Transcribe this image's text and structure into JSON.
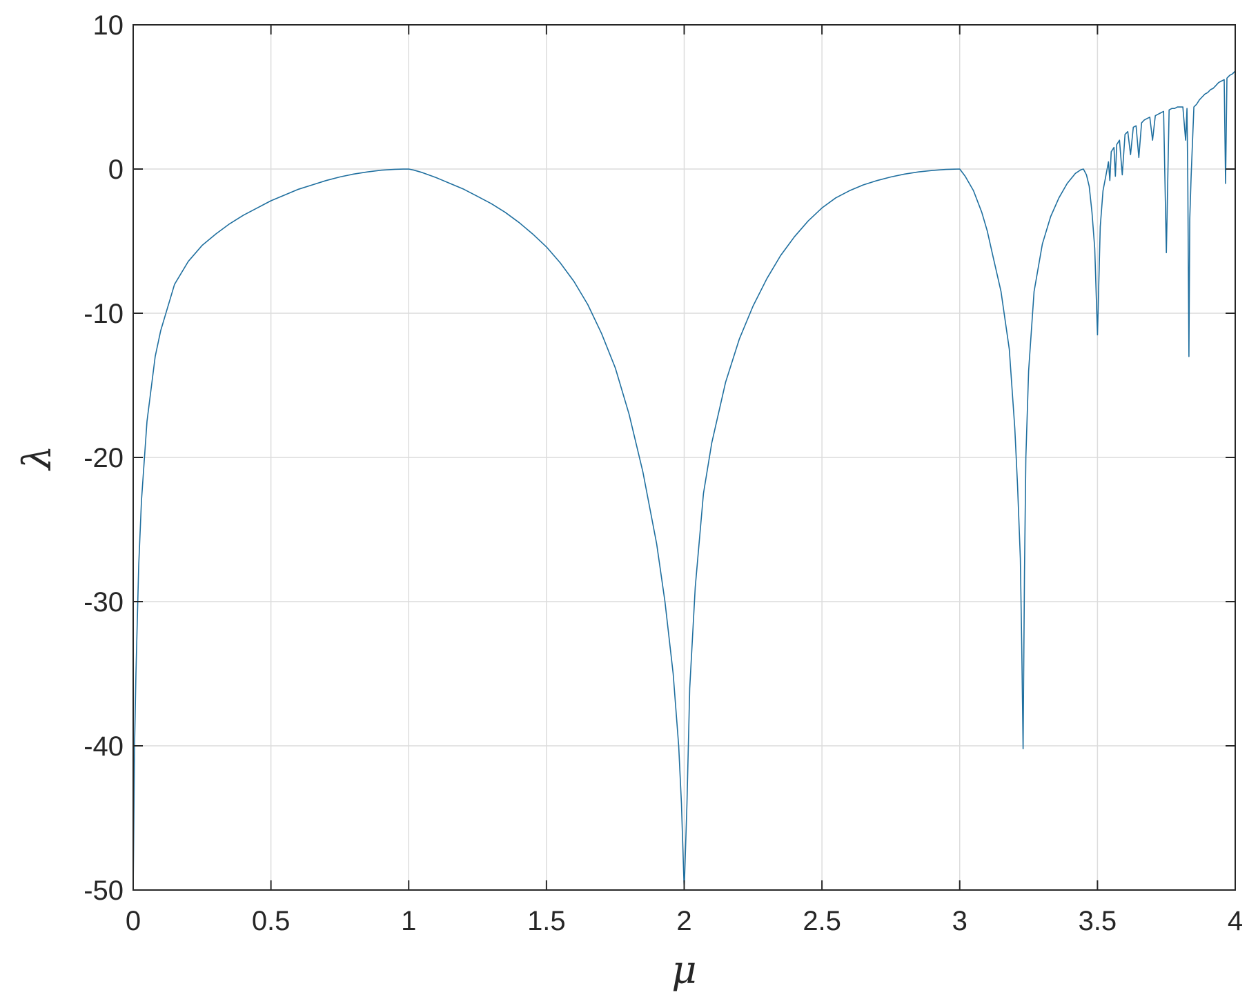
{
  "chart_data": {
    "type": "line",
    "title": "",
    "xlabel": "μ",
    "ylabel": "λ",
    "xlim": [
      0,
      4
    ],
    "ylim": [
      -50,
      10
    ],
    "grid": true,
    "x_ticks": [
      0,
      0.5,
      1,
      1.5,
      2,
      2.5,
      3,
      3.5,
      4
    ],
    "x_tick_labels": [
      "0",
      "0.5",
      "1",
      "1.5",
      "2",
      "2.5",
      "3",
      "3.5",
      "4"
    ],
    "y_ticks": [
      10,
      0,
      -10,
      -20,
      -30,
      -40,
      -50
    ],
    "y_tick_labels": [
      "10",
      "0",
      "-10",
      "-20",
      "-30",
      "-40",
      "-50"
    ],
    "colors": {
      "series": "#1f6f9f",
      "grid": "#dcdcdc",
      "axis": "#262626"
    },
    "series": [
      {
        "x": [
          0.0,
          0.005,
          0.01,
          0.02,
          0.03,
          0.05,
          0.08,
          0.1,
          0.15,
          0.2,
          0.25,
          0.3,
          0.35,
          0.4,
          0.45,
          0.5,
          0.55,
          0.6,
          0.65,
          0.7,
          0.75,
          0.8,
          0.85,
          0.9,
          0.95,
          0.98,
          1.0,
          1.02,
          1.05,
          1.1,
          1.15,
          1.2,
          1.25,
          1.3,
          1.35,
          1.4,
          1.45,
          1.5,
          1.55,
          1.6,
          1.65,
          1.7,
          1.75,
          1.8,
          1.85,
          1.9,
          1.93,
          1.96,
          1.98,
          1.99,
          1.995,
          2.0,
          2.005,
          2.01,
          2.02,
          2.04,
          2.07,
          2.1,
          2.15,
          2.2,
          2.25,
          2.3,
          2.35,
          2.4,
          2.45,
          2.5,
          2.55,
          2.6,
          2.65,
          2.7,
          2.75,
          2.8,
          2.85,
          2.9,
          2.95,
          2.98,
          3.0,
          3.02,
          3.05,
          3.08,
          3.1,
          3.12,
          3.15,
          3.18,
          3.2,
          3.21,
          3.22,
          3.225,
          3.23,
          3.235,
          3.24,
          3.25,
          3.27,
          3.3,
          3.33,
          3.36,
          3.39,
          3.42,
          3.44,
          3.449,
          3.46,
          3.47,
          3.48,
          3.49,
          3.5,
          3.51,
          3.52,
          3.53,
          3.54,
          3.545,
          3.55,
          3.56,
          3.565,
          3.57,
          3.58,
          3.59,
          3.6,
          3.61,
          3.62,
          3.63,
          3.64,
          3.65,
          3.66,
          3.67,
          3.68,
          3.69,
          3.7,
          3.71,
          3.72,
          3.73,
          3.74,
          3.75,
          3.76,
          3.77,
          3.78,
          3.79,
          3.8,
          3.81,
          3.82,
          3.825,
          3.828,
          3.832,
          3.835,
          3.84,
          3.85,
          3.86,
          3.87,
          3.88,
          3.89,
          3.9,
          3.91,
          3.92,
          3.93,
          3.94,
          3.95,
          3.96,
          3.965,
          3.97,
          3.98,
          3.99,
          4.0
        ],
        "y": [
          -50.0,
          -40.0,
          -35.0,
          -27.5,
          -23.0,
          -17.5,
          -13.0,
          -11.2,
          -8.0,
          -6.4,
          -5.3,
          -4.5,
          -3.8,
          -3.2,
          -2.7,
          -2.2,
          -1.8,
          -1.4,
          -1.1,
          -0.8,
          -0.55,
          -0.35,
          -0.2,
          -0.08,
          -0.02,
          -0.005,
          0.0,
          -0.08,
          -0.25,
          -0.6,
          -1.0,
          -1.4,
          -1.9,
          -2.4,
          -3.0,
          -3.7,
          -4.5,
          -5.4,
          -6.5,
          -7.8,
          -9.4,
          -11.4,
          -13.8,
          -17.0,
          -21.0,
          -26.0,
          -30.0,
          -35.0,
          -40.0,
          -44.0,
          -47.0,
          -50.0,
          -47.0,
          -44.0,
          -36.0,
          -29.0,
          -22.5,
          -19.0,
          -14.8,
          -11.8,
          -9.5,
          -7.6,
          -6.0,
          -4.7,
          -3.6,
          -2.7,
          -2.0,
          -1.5,
          -1.1,
          -0.8,
          -0.55,
          -0.35,
          -0.2,
          -0.1,
          -0.03,
          -0.01,
          0.0,
          -0.5,
          -1.5,
          -3.0,
          -4.3,
          -6.0,
          -8.5,
          -12.5,
          -18.0,
          -22.0,
          -27.0,
          -33.0,
          -40.2,
          -28.0,
          -20.0,
          -14.0,
          -8.5,
          -5.2,
          -3.3,
          -2.0,
          -1.0,
          -0.3,
          -0.05,
          0.0,
          -0.4,
          -1.2,
          -3.0,
          -5.5,
          -11.5,
          -4.0,
          -1.5,
          -0.5,
          0.5,
          -0.8,
          1.2,
          1.5,
          -0.5,
          1.7,
          2.0,
          -0.4,
          2.4,
          2.6,
          1.0,
          2.9,
          3.0,
          0.8,
          3.2,
          3.4,
          3.5,
          3.6,
          2.0,
          3.7,
          3.8,
          3.9,
          4.0,
          -5.8,
          4.1,
          4.2,
          4.2,
          4.3,
          4.3,
          4.3,
          2.0,
          4.2,
          -1.0,
          -13.0,
          -3.5,
          -0.5,
          4.3,
          4.5,
          4.8,
          5.0,
          5.2,
          5.3,
          5.5,
          5.6,
          5.8,
          6.0,
          6.1,
          6.2,
          -1.0,
          6.3,
          6.5,
          6.6,
          6.8
        ]
      }
    ]
  }
}
